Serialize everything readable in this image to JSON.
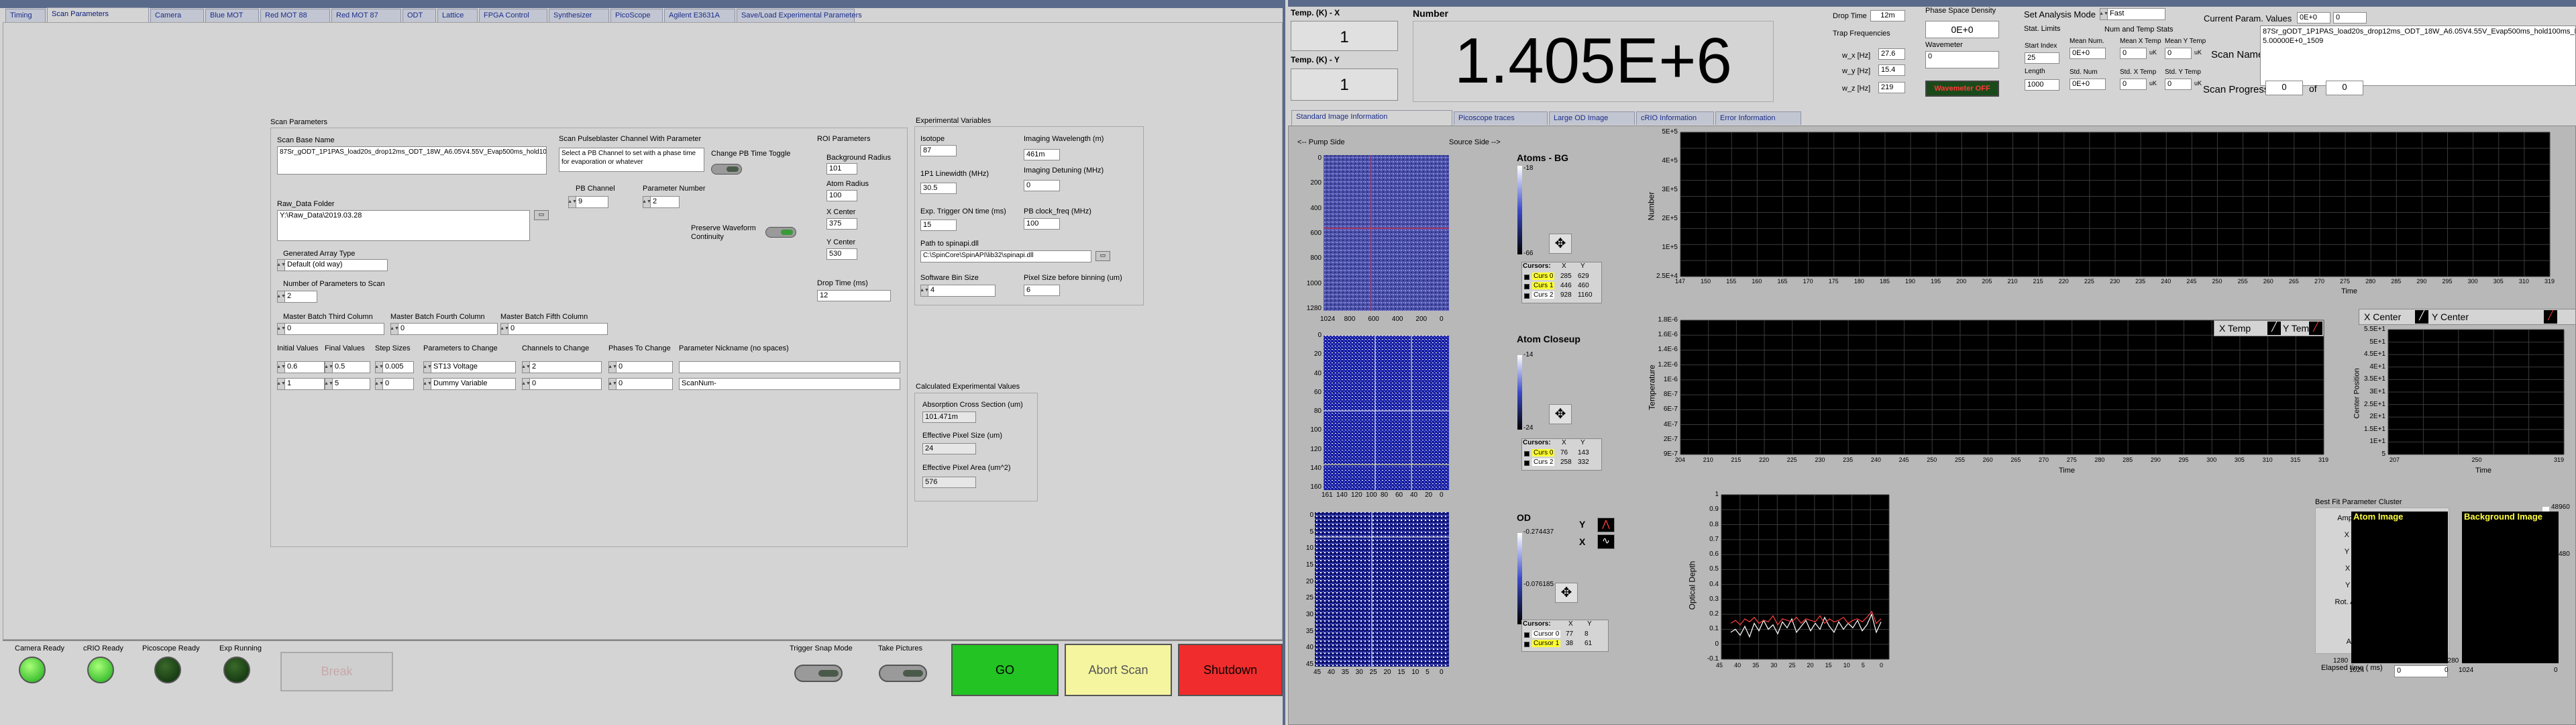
{
  "left": {
    "tabs": [
      "Timing",
      "Scan Parameters",
      "Camera",
      "Blue MOT",
      "Red MOT 88",
      "Red MOT 87",
      "ODT",
      "Lattice",
      "FPGA Control",
      "Synthesizer",
      "PicoScope",
      "Agilent E3631A",
      "Save/Load Experimental Parameters"
    ],
    "scan_params_title": "Scan Parameters",
    "scan_base_name_label": "Scan Base Name",
    "scan_base_name": "87Sr_gODT_1P1PAS_load20s_drop12ms_ODT_18W_A6.05V4.55V_Evap500ms_hold100ms_Exp90ms_PASPD26.3mV_Set0.03V_recapture50ms_",
    "raw_data_folder_label": "Raw_Data Folder",
    "raw_data_folder": "Y:\\Raw_Data\\2019.03.28",
    "generated_array_type_label": "Generated Array Type",
    "generated_array_type": "Default (old way)",
    "num_params_label": "Number of Parameters to Scan",
    "num_params": "2",
    "master_third_label": "Master Batch Third Column",
    "master_third": "0",
    "master_fourth_label": "Master Batch Fourth Column",
    "master_fourth": "0",
    "master_fifth_label": "Master Batch Fifth Column",
    "master_fifth": "0",
    "col_headers": [
      "Initial Values",
      "Final Values",
      "Step Sizes",
      "Parameters to Change",
      "Channels to Change",
      "Phases To Change",
      "Parameter Nickname (no spaces)"
    ],
    "scan_rows": [
      {
        "initial": "0.6",
        "final": "0.5",
        "step": "0.005",
        "param": "ST13 Voltage",
        "channel": "2",
        "phase": "0",
        "nickname": ""
      },
      {
        "initial": "1",
        "final": "5",
        "step": "0",
        "param": "Dummy Variable",
        "channel": "0",
        "phase": "0",
        "nickname": "ScanNum-"
      }
    ],
    "pb_title": "Scan Pulseblaster Channel With Parameter",
    "pb_desc": "Select a PB Channel to set with a phase time for evaporation or whatever",
    "pb_toggle_label": "Change PB Time Toggle",
    "pb_channel_label": "PB Channel",
    "pb_channel": "9",
    "param_number_label": "Parameter Number",
    "param_number": "2",
    "preserve_label": "Preserve Waveform Continuity",
    "roi_title": "ROI Parameters",
    "bg_radius_label": "Background Radius",
    "bg_radius": "101",
    "atom_radius_label": "Atom Radius",
    "atom_radius": "100",
    "x_center_label": "X Center",
    "x_center": "375",
    "y_center_label": "Y Center",
    "y_center": "530",
    "drop_time_label": "Drop Time (ms)",
    "drop_time": "12",
    "exp_vars_title": "Experimental Variables",
    "isotope_label": "Isotope",
    "isotope": "87",
    "imaging_wl_label": "Imaging Wavelength (m)",
    "imaging_wl": "461m",
    "linewidth_label": "1P1 Linewidth (MHz)",
    "linewidth": "30.5",
    "imaging_det_label": "Imaging Detuning (MHz)",
    "imaging_det": "0",
    "exp_trigger_label": "Exp. Trigger ON time (ms)",
    "exp_trigger": "15",
    "pb_clock_label": "PB clock_freq (MHz)",
    "pb_clock": "100",
    "spinapi_label": "Path to spinapi.dll",
    "spinapi": "C:\\SpinCore\\SpinAPI\\lib32\\spinapi.dll",
    "sw_bin_label": "Software Bin Size",
    "sw_bin": "4",
    "pixel_size_label": "Pixel Size before binning (um)",
    "pixel_size": "6",
    "calc_title": "Calculated Experimental Values",
    "abs_cs_label": "Absorption Cross Section (um)",
    "abs_cs": "101.471m",
    "eff_pix_label": "Effective Pixel Size (um)",
    "eff_pix": "24",
    "eff_area_label": "Effective Pixel Area (um^2)",
    "eff_area": "576",
    "status": [
      {
        "label": "Camera Ready",
        "on": true
      },
      {
        "label": "cRIO Ready",
        "on": true
      },
      {
        "label": "Picoscope Ready",
        "on": false
      },
      {
        "label": "Exp Running",
        "on": false
      }
    ],
    "break_label": "Break",
    "trigger_snap_label": "Trigger Snap Mode",
    "take_pictures_label": "Take Pictures",
    "go_label": "GO",
    "abort_label": "Abort Scan",
    "shutdown_label": "Shutdown"
  },
  "right": {
    "temp_x_label": "Temp. (K) - X",
    "temp_x": "1",
    "temp_y_label": "Temp. (K) - Y",
    "temp_y": "1",
    "number_label": "Number",
    "number": "1.405E+6",
    "drop_time_label": "Drop Time",
    "drop_time": "12m",
    "trap_freq_label": "Trap Frequencies",
    "wx_label": "w_x [Hz]",
    "wx": "27.6",
    "wy_label": "w_y [Hz]",
    "wy": "15.4",
    "wz_label": "w_z [Hz]",
    "wz": "219",
    "psd_label": "Phase Space Density",
    "psd": "0E+0",
    "wavemeter_label": "Wavemeter",
    "wavemeter": "0",
    "wavemeter_btn": "Wavemeter OFF",
    "stat_limits_label": "Stat. Limits",
    "start_index_label": "Start Index",
    "start_index": "25",
    "length_label": "Length",
    "length": "1000",
    "analysis_mode_label": "Set Analysis Mode",
    "analysis_mode": "Fast",
    "num_temp_stats_label": "Num and Temp Stats",
    "stat_headers": [
      "Mean Num.",
      "Mean X Temp",
      "Mean Y Temp",
      "Std. Num",
      "Std. X Temp",
      "Std. Y Temp"
    ],
    "stat_values": [
      "0E+0",
      "0",
      "0",
      "0E+0",
      "0",
      "0"
    ],
    "current_param_label": "Current Param. Values",
    "current_param": "0E+0",
    "current_param2": "0",
    "scan_name_label": "Scan Name",
    "scan_name": "87Sr_gODT_1P1PAS_load20s_drop12ms_ODT_18W_A6.05V4.55V_Evap500ms_hold100ms_Exp90ms_PASPD26.3mV_Set0.03V_recapture50ms_ScanNum-5.00000E+0_1509",
    "scan_progress_label": "Scan Progress",
    "scan_progress": "0",
    "of_label": "of",
    "scan_total": "0",
    "tabs": [
      "Standard Image Information",
      "Picoscope traces",
      "Large OD Image",
      "cRIO Information",
      "Error Information"
    ],
    "pump_side": "<-- Pump Side",
    "source_side": "Source Side -->",
    "atoms_bg_label": "Atoms - BG",
    "atoms_bg_scale": [
      "-18",
      "-66"
    ],
    "atom_closeup_label": "Atom Closeup",
    "closeup_scale": [
      "-14",
      "-24"
    ],
    "od_label": "OD",
    "od_scale": [
      "-0.274437",
      "-0.076185"
    ],
    "cursors_label": "Cursors:",
    "cursor_headers": [
      "X",
      "Y"
    ],
    "cursors1": [
      [
        "Curs 0",
        "285",
        "629"
      ],
      [
        "Curs 1",
        "446",
        "460"
      ],
      [
        "Curs 2",
        "928",
        "1160"
      ]
    ],
    "cursors2": [
      [
        "Curs 0",
        "76",
        "143"
      ],
      [
        "Curs 2",
        "258",
        "332"
      ]
    ],
    "cursors3": [
      [
        "Cursor 0",
        "77",
        "8"
      ],
      [
        "Cursor 1",
        "38",
        "61"
      ]
    ],
    "number_plot_ylabel": "Number",
    "number_plot_yticks": [
      "5E+5",
      "4E+5",
      "3E+5",
      "2E+5",
      "1E+5",
      "2.5E+4"
    ],
    "number_plot_xticks": [
      "147",
      "150",
      "155",
      "160",
      "165",
      "170",
      "175",
      "180",
      "185",
      "190",
      "195",
      "200",
      "205",
      "210",
      "215",
      "220",
      "225",
      "230",
      "235",
      "240",
      "245",
      "250",
      "255",
      "260",
      "265",
      "270",
      "275",
      "280",
      "285",
      "290",
      "295",
      "300",
      "305",
      "310",
      "319"
    ],
    "time_label": "Time",
    "temp_plot_ylabel": "Temperature",
    "temp_plot_yticks": [
      "1.8E-6",
      "1.6E-6",
      "1.4E-6",
      "1.2E-6",
      "1E-6",
      "8E-7",
      "6E-7",
      "4E-7",
      "2E-7",
      "9E-7"
    ],
    "temp_plot_xticks": [
      "204",
      "210",
      "215",
      "220",
      "225",
      "230",
      "235",
      "240",
      "245",
      "250",
      "255",
      "260",
      "265",
      "270",
      "275",
      "280",
      "285",
      "290",
      "295",
      "300",
      "305",
      "310",
      "315",
      "319"
    ],
    "x_temp_label": "X Temp",
    "y_temp_label": "Y Temp",
    "x_center_label": "X Center",
    "y_center_label": "Y Center",
    "center_ylabel": "Center Position",
    "center_yticks": [
      "5.5E+1",
      "5E+1",
      "4.5E+1",
      "4E+1",
      "3.5E+1",
      "3E+1",
      "2.5E+1",
      "2E+1",
      "1.5E+1",
      "1E+1",
      "5"
    ],
    "center_xticks": [
      "207",
      "250",
      "319"
    ],
    "od_plot_ylabel": "Optical Depth",
    "od_plot_yticks": [
      "1",
      "0.9",
      "0.8",
      "0.7",
      "0.6",
      "0.5",
      "0.4",
      "0.3",
      "0.2",
      "0.1",
      "0",
      "-0.1"
    ],
    "od_plot_xticks": [
      "45",
      "40",
      "35",
      "30",
      "25",
      "20",
      "15",
      "10",
      "5",
      "0"
    ],
    "fit_title": "Best Fit Parameter Cluster",
    "fit_params": [
      {
        "label": "Amplitude (OD)",
        "value": "0"
      },
      {
        "label": "X Center (px)",
        "value": "0"
      },
      {
        "label": "Y Center (px)",
        "value": "0"
      },
      {
        "label": "X Width (um)",
        "value": "0"
      },
      {
        "label": "Y Width (um)",
        "value": "0"
      },
      {
        "label": "Rot. Angle (deg)",
        "value": "0"
      },
      {
        "label": "Aspect Ratio",
        "value": "0"
      }
    ],
    "elapsed_label": "Elapsed time ( ms)",
    "elapsed": "0",
    "atom_image_label": "Atom Image",
    "bg_image_label": "Background Image",
    "colorbar_ticks": [
      "48960",
      "20480",
      "0"
    ],
    "img1_yticks": [
      "0",
      "200",
      "400",
      "600",
      "800",
      "1000",
      "1280"
    ],
    "img1_xticks": [
      "1024",
      "800",
      "600",
      "400",
      "200",
      "0"
    ],
    "img2_yticks": [
      "0",
      "20",
      "40",
      "60",
      "80",
      "100",
      "120",
      "140",
      "160"
    ],
    "img2_xticks": [
      "161",
      "140",
      "120",
      "100",
      "80",
      "60",
      "40",
      "20",
      "0"
    ],
    "img3_yticks": [
      "0",
      "5",
      "10",
      "15",
      "20",
      "25",
      "30",
      "35",
      "40",
      "45"
    ],
    "img3_xticks": [
      "45",
      "40",
      "35",
      "30",
      "25",
      "20",
      "15",
      "10",
      "5",
      "0"
    ],
    "atom_img_xticks": [
      "1024",
      "0"
    ],
    "atom_img_yticks": [
      "1280"
    ],
    "y_label": "Y",
    "x_label": "X"
  }
}
